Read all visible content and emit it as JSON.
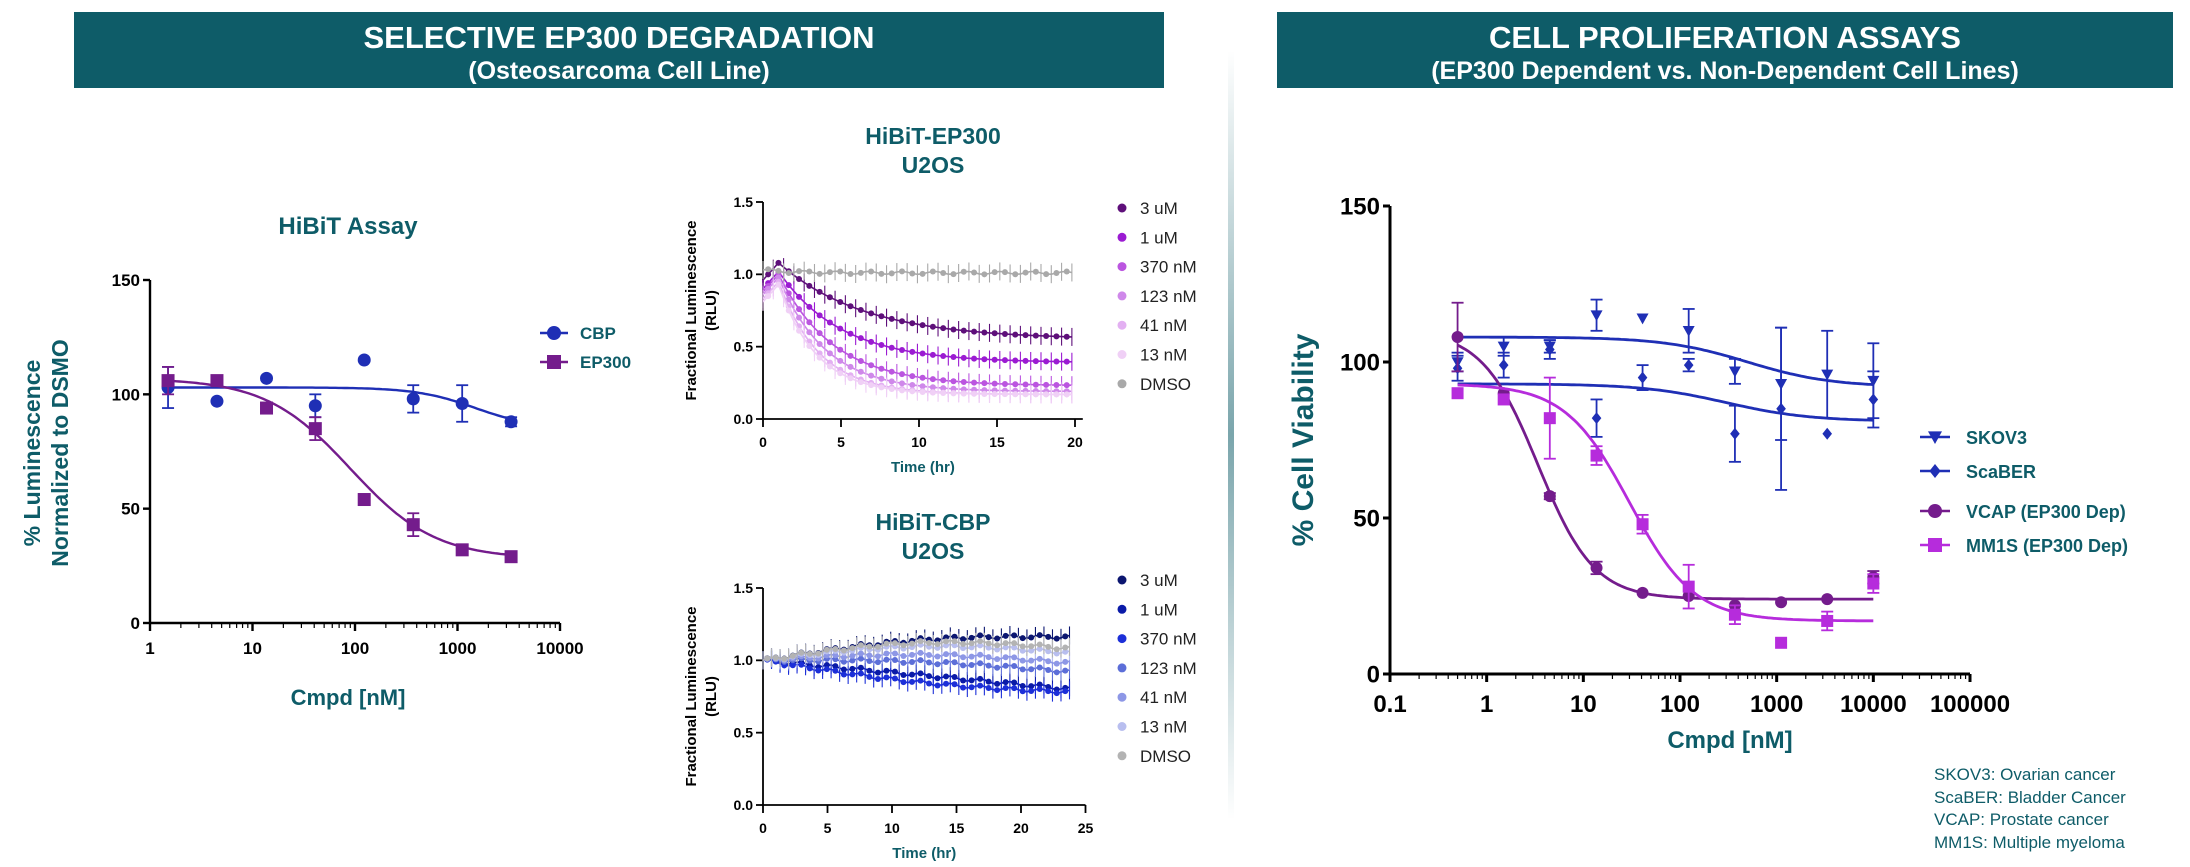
{
  "banners": {
    "left": {
      "title": "SELECTIVE EP300 DEGRADATION",
      "subtitle": "(Osteosarcoma Cell Line)"
    },
    "right": {
      "title": "CELL PROLIFERATION ASSAYS",
      "subtitle": "(EP300 Dependent  vs. Non-Dependent Cell Lines)"
    }
  },
  "colors": {
    "teal": "#0e5c68",
    "cbp_blue": "#1f2fb5",
    "ep300_purple": "#741c8c",
    "vcap": "#741c8c",
    "mm1s": "#b62cdc",
    "dmso": "#aaaaaa"
  },
  "key_notes": [
    "SKOV3: Ovarian cancer",
    "ScaBER: Bladder Cancer",
    "VCAP: Prostate cancer",
    "MM1S: Multiple myeloma"
  ],
  "chart_data": [
    {
      "id": "hibit",
      "type": "scatter",
      "title": "HiBiT Assay",
      "xlabel": "Cmpd [nM]",
      "ylabel": [
        "% Luminescence",
        "Normalized to DSMO"
      ],
      "xscale": "log",
      "xlim": [
        1,
        10000
      ],
      "ylim": [
        0,
        150
      ],
      "xticks": [
        1,
        10,
        100,
        1000,
        10000
      ],
      "xtick_labels": [
        "1",
        "10",
        "100",
        "1000",
        "10000"
      ],
      "yticks": [
        0,
        50,
        100,
        150
      ],
      "ytick_labels": [
        "0",
        "50",
        "100",
        "150"
      ],
      "legend_position": "top-right",
      "series": [
        {
          "name": "CBP",
          "marker": "circle",
          "color": "#1f2fb5",
          "x": [
            1.5,
            4.5,
            13.7,
            41,
            123,
            370,
            1111,
            3333
          ],
          "y": [
            103,
            97,
            107,
            95,
            115,
            98,
            96,
            88
          ],
          "err": [
            9,
            0,
            0,
            5,
            0,
            6,
            8,
            2
          ],
          "fit": {
            "top": 103,
            "bottom": 85,
            "ic50": 1500,
            "hill": 1.5
          }
        },
        {
          "name": "EP300",
          "marker": "square",
          "color": "#741c8c",
          "x": [
            1.5,
            4.5,
            13.7,
            41,
            123,
            370,
            1111,
            3333
          ],
          "y": [
            106,
            106,
            94,
            85,
            54,
            43,
            32,
            29
          ],
          "err": [
            6,
            2,
            0,
            5,
            2,
            5,
            2,
            2
          ],
          "fit": {
            "top": 107,
            "bottom": 28,
            "ic50": 90,
            "hill": 1.05
          }
        }
      ]
    },
    {
      "id": "ep300-time",
      "type": "line",
      "title": [
        "HiBiT-EP300",
        "U2OS"
      ],
      "xlabel": "Time (hr)",
      "ylabel": [
        "Fractional Luminescence",
        "(RLU)"
      ],
      "xlim": [
        0,
        20.5
      ],
      "ylim": [
        0,
        1.5
      ],
      "xticks": [
        0,
        5,
        10,
        15,
        20
      ],
      "xtick_labels": [
        "0",
        "5",
        "10",
        "15",
        "20"
      ],
      "yticks": [
        0,
        0.5,
        1.0,
        1.5
      ],
      "ytick_labels": [
        "0.0",
        "0.5",
        "1.0",
        "1.5"
      ],
      "legend_position": "right",
      "series": [
        {
          "name": "3 uM",
          "color": "#5e0f7a",
          "start": 1.08,
          "plateau": 0.55,
          "tau": 5.5
        },
        {
          "name": "1 uM",
          "color": "#9b1bd2",
          "start": 1.02,
          "plateau": 0.39,
          "tau": 4.0
        },
        {
          "name": "370 nM",
          "color": "#bb55e0",
          "start": 1.0,
          "plateau": 0.23,
          "tau": 3.5
        },
        {
          "name": "123 nM",
          "color": "#cf88ea",
          "start": 0.98,
          "plateau": 0.19,
          "tau": 3.0
        },
        {
          "name": "41 nM",
          "color": "#e3b0f2",
          "start": 0.95,
          "plateau": 0.17,
          "tau": 2.6
        },
        {
          "name": "13 nM",
          "color": "#f0d0f6",
          "start": 0.93,
          "plateau": 0.17,
          "tau": 2.4
        },
        {
          "name": "DMSO",
          "color": "#a9a9a9",
          "start": 1.03,
          "plateau": 1.01,
          "tau": 5.0
        }
      ]
    },
    {
      "id": "cbp-time",
      "type": "line",
      "title": [
        "HiBiT-CBP",
        "U2OS"
      ],
      "xlabel": "Time (hr)",
      "ylabel": [
        "Fractional Luminescence",
        "(RLU)"
      ],
      "xlim": [
        0,
        25
      ],
      "ylim": [
        0,
        1.5
      ],
      "xticks": [
        0,
        5,
        10,
        15,
        20,
        25
      ],
      "xtick_labels": [
        "0",
        "5",
        "10",
        "15",
        "20",
        "25"
      ],
      "yticks": [
        0,
        0.5,
        1.0,
        1.5
      ],
      "ytick_labels": [
        "0.0",
        "0.5",
        "1.0",
        "1.5"
      ],
      "legend_position": "right",
      "series": [
        {
          "name": "3 uM",
          "color": "#0b1670",
          "start": 1.0,
          "end": 1.16,
          "hump": 0.06
        },
        {
          "name": "1 uM",
          "color": "#0a1aa8",
          "start": 1.0,
          "end": 0.8,
          "hump": 0.0
        },
        {
          "name": "370 nM",
          "color": "#1c2fd8",
          "start": 1.0,
          "end": 0.78,
          "hump": -0.04
        },
        {
          "name": "123 nM",
          "color": "#5c6ed8",
          "start": 1.0,
          "end": 0.92,
          "hump": 0.03
        },
        {
          "name": "41 nM",
          "color": "#8d97e6",
          "start": 1.0,
          "end": 0.98,
          "hump": 0.05
        },
        {
          "name": "13 nM",
          "color": "#b8beef",
          "start": 1.0,
          "end": 1.05,
          "hump": 0.07
        },
        {
          "name": "DMSO",
          "color": "#b3b3b3",
          "start": 1.0,
          "end": 1.08,
          "hump": 0.08
        }
      ]
    },
    {
      "id": "viability",
      "type": "scatter",
      "title": "",
      "xlabel": "Cmpd [nM]",
      "ylabel": "% Cell Viability",
      "xscale": "log",
      "xlim": [
        0.1,
        100000
      ],
      "ylim": [
        0,
        150
      ],
      "xticks": [
        0.1,
        1,
        10,
        100,
        1000,
        10000,
        100000
      ],
      "xtick_labels": [
        "0.1",
        "1",
        "10",
        "100",
        "1000",
        "10000",
        "100000"
      ],
      "yticks": [
        0,
        50,
        100,
        150
      ],
      "ytick_labels": [
        "0",
        "50",
        "100",
        "150"
      ],
      "legend_position": "right",
      "series": [
        {
          "name": "SKOV3",
          "marker": "triangle-down",
          "color": "#1f2fb5",
          "x": [
            0.5,
            1.5,
            4.5,
            13.7,
            41,
            123,
            370,
            1111,
            3333,
            10000
          ],
          "y": [
            100,
            105,
            105,
            115,
            114,
            110,
            97,
            93,
            96,
            94
          ],
          "err": [
            3,
            3,
            2,
            5,
            0,
            7,
            4,
            18,
            14,
            12
          ],
          "fit": {
            "top": 108,
            "bottom": 92,
            "ic50": 500,
            "hill": 1
          }
        },
        {
          "name": "ScaBER",
          "marker": "diamond",
          "color": "#1f2fb5",
          "x": [
            0.5,
            1.5,
            4.5,
            13.7,
            41,
            123,
            370,
            1111,
            3333,
            10000
          ],
          "y": [
            98,
            99,
            104,
            82,
            95,
            99,
            77,
            85,
            77,
            88
          ],
          "err": [
            4,
            4,
            3,
            6,
            4,
            2,
            9,
            26,
            0,
            9
          ],
          "fit": {
            "top": 93,
            "bottom": 81,
            "ic50": 300,
            "hill": 1
          }
        },
        {
          "name": "VCAP (EP300 Dep)",
          "marker": "circle",
          "color": "#741c8c",
          "x": [
            0.5,
            1.5,
            4.5,
            13.7,
            41,
            123,
            370,
            1111,
            3333,
            10000
          ],
          "y": [
            108,
            90,
            57,
            34,
            26,
            25,
            22,
            23,
            24,
            31
          ],
          "err": [
            11,
            0,
            1,
            2,
            0,
            0,
            0,
            0,
            0,
            2
          ],
          "fit": {
            "top": 110,
            "bottom": 24,
            "ic50": 3.4,
            "hill": 1.5
          }
        },
        {
          "name": "MM1S (EP300 Dep)",
          "marker": "square",
          "color": "#b62cdc",
          "x": [
            0.5,
            1.5,
            4.5,
            13.7,
            41,
            123,
            370,
            1111,
            3333,
            10000
          ],
          "y": [
            90,
            88,
            82,
            70,
            48,
            28,
            19,
            10,
            17,
            29
          ],
          "err": [
            0,
            0,
            13,
            3,
            3,
            7,
            3,
            0,
            3,
            3
          ],
          "fit": {
            "top": 93,
            "bottom": 17,
            "ic50": 30,
            "hill": 1.3
          }
        }
      ]
    }
  ]
}
